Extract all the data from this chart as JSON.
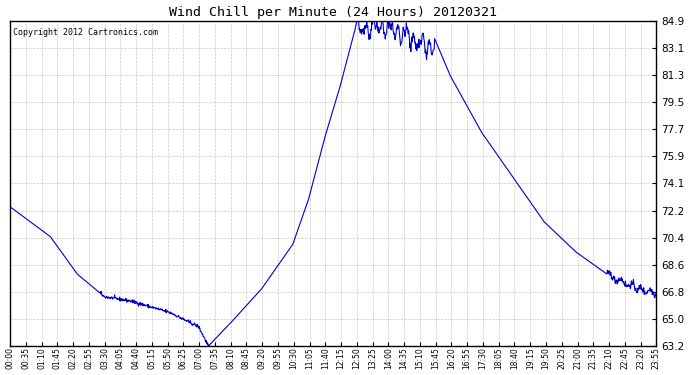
{
  "title": "Wind Chill per Minute (24 Hours) 20120321",
  "copyright_text": "Copyright 2012 Cartronics.com",
  "line_color": "#0000cc",
  "background_color": "#ffffff",
  "grid_color": "#bbbbbb",
  "yticks": [
    63.2,
    65.0,
    66.8,
    68.6,
    70.4,
    72.2,
    74.1,
    75.9,
    77.7,
    79.5,
    81.3,
    83.1,
    84.9
  ],
  "ymin": 63.2,
  "ymax": 84.9,
  "xtick_labels": [
    "00:00",
    "00:35",
    "01:10",
    "01:45",
    "02:20",
    "02:55",
    "03:30",
    "04:05",
    "04:40",
    "05:15",
    "05:50",
    "06:25",
    "07:00",
    "07:35",
    "08:10",
    "08:45",
    "09:20",
    "09:55",
    "10:30",
    "11:05",
    "11:40",
    "12:15",
    "12:50",
    "13:25",
    "14:00",
    "14:35",
    "15:10",
    "15:45",
    "16:20",
    "16:55",
    "17:30",
    "18:05",
    "18:40",
    "19:15",
    "19:50",
    "20:25",
    "21:00",
    "21:35",
    "22:10",
    "22:45",
    "23:20",
    "23:55"
  ],
  "figwidth": 6.9,
  "figheight": 3.75,
  "dpi": 100
}
